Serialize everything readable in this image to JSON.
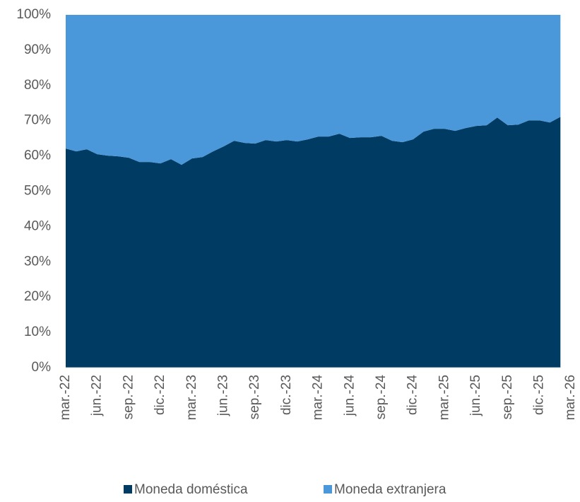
{
  "chart_data": {
    "type": "stacked_area_100",
    "categories": [
      "mar.-22",
      null,
      null,
      "jun.-22",
      null,
      null,
      "sep.-22",
      null,
      null,
      "dic.-22",
      null,
      null,
      "mar.-23",
      null,
      null,
      "jun.-23",
      null,
      null,
      "sep.-23",
      null,
      null,
      "dic.-23",
      null,
      null,
      "mar.-24",
      null,
      null,
      "jun.-24",
      null,
      null,
      "sep.-24",
      null,
      null,
      "dic.-24",
      null,
      null,
      "mar.-25",
      null,
      null,
      "jun.-25",
      null,
      null,
      "sep.-25",
      null,
      null,
      "dic.-25",
      null,
      null,
      "mar.-26"
    ],
    "series": [
      {
        "name": "Moneda doméstica",
        "color": "#003B64",
        "values": [
          62.1,
          61.3,
          61.9,
          60.5,
          60.1,
          59.9,
          59.5,
          58.3,
          58.3,
          57.9,
          59.1,
          57.5,
          59.3,
          59.7,
          61.3,
          62.7,
          64.3,
          63.7,
          63.5,
          64.5,
          64.1,
          64.5,
          64.1,
          64.7,
          65.5,
          65.5,
          66.3,
          65.1,
          65.3,
          65.3,
          65.7,
          64.3,
          63.9,
          64.7,
          66.9,
          67.7,
          67.7,
          67.1,
          67.9,
          68.5,
          68.7,
          70.9,
          68.7,
          68.9,
          70.1,
          70.1,
          69.5,
          71.1,
          null
        ]
      },
      {
        "name": "Moneda extranjera",
        "color": "#4A98D9",
        "values": [
          37.9,
          38.7,
          38.1,
          39.5,
          39.9,
          40.1,
          40.5,
          41.7,
          41.7,
          42.1,
          40.9,
          42.5,
          40.7,
          40.3,
          38.7,
          37.3,
          35.7,
          36.3,
          36.5,
          35.5,
          35.9,
          35.5,
          35.9,
          35.3,
          34.5,
          34.5,
          33.7,
          34.9,
          34.7,
          34.7,
          34.3,
          35.7,
          36.1,
          35.3,
          33.1,
          32.3,
          32.3,
          32.9,
          32.1,
          31.5,
          31.3,
          29.1,
          31.3,
          31.1,
          29.9,
          29.9,
          30.5,
          28.9,
          null
        ]
      }
    ],
    "ylim": [
      0,
      100
    ],
    "yticks": [
      {
        "value": 0,
        "label": "0%"
      },
      {
        "value": 10,
        "label": "10%"
      },
      {
        "value": 20,
        "label": "20%"
      },
      {
        "value": 30,
        "label": "30%"
      },
      {
        "value": 40,
        "label": "40%"
      },
      {
        "value": 50,
        "label": "50%"
      },
      {
        "value": 60,
        "label": "60%"
      },
      {
        "value": 70,
        "label": "70%"
      },
      {
        "value": 80,
        "label": "80%"
      },
      {
        "value": 90,
        "label": "90%"
      },
      {
        "value": 100,
        "label": "100%"
      }
    ],
    "legend": "bottom"
  }
}
